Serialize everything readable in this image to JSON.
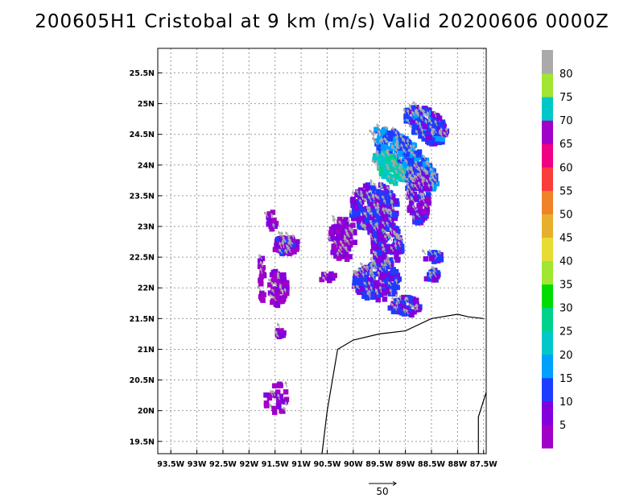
{
  "title": "200605H1 Cristobal at 9 km (m/s) Valid 20200606 0000Z",
  "chart_data": {
    "type": "heatmap",
    "xlim": [
      -93.75,
      -87.45
    ],
    "ylim": [
      19.3,
      25.9
    ],
    "x_ticks": [
      {
        "value": -93.5,
        "label": "93.5W"
      },
      {
        "value": -93.0,
        "label": "93W"
      },
      {
        "value": -92.5,
        "label": "92.5W"
      },
      {
        "value": -92.0,
        "label": "92W"
      },
      {
        "value": -91.5,
        "label": "91.5W"
      },
      {
        "value": -91.0,
        "label": "91W"
      },
      {
        "value": -90.5,
        "label": "90.5W"
      },
      {
        "value": -90.0,
        "label": "90W"
      },
      {
        "value": -89.5,
        "label": "89.5W"
      },
      {
        "value": -89.0,
        "label": "89W"
      },
      {
        "value": -88.5,
        "label": "88.5W"
      },
      {
        "value": -88.0,
        "label": "88W"
      },
      {
        "value": -87.5,
        "label": "87.5W"
      }
    ],
    "y_ticks": [
      {
        "value": 19.5,
        "label": "19.5N"
      },
      {
        "value": 20.0,
        "label": "20N"
      },
      {
        "value": 20.5,
        "label": "20.5N"
      },
      {
        "value": 21.0,
        "label": "21N"
      },
      {
        "value": 21.5,
        "label": "21.5N"
      },
      {
        "value": 22.0,
        "label": "22N"
      },
      {
        "value": 22.5,
        "label": "22.5N"
      },
      {
        "value": 23.0,
        "label": "23N"
      },
      {
        "value": 23.5,
        "label": "23.5N"
      },
      {
        "value": 24.0,
        "label": "24N"
      },
      {
        "value": 24.5,
        "label": "24.5N"
      },
      {
        "value": 25.0,
        "label": "25N"
      },
      {
        "value": 25.5,
        "label": "25.5N"
      }
    ],
    "grid": true,
    "colorbar": {
      "colors": [
        "#a000c8",
        "#8200dc",
        "#1e3cff",
        "#00a0ff",
        "#00c8c8",
        "#00d28c",
        "#00dc00",
        "#a0e632",
        "#e6dc32",
        "#e6af2d",
        "#f08228",
        "#fa3c3c",
        "#f00082",
        "#a000c8",
        "#00c8c8",
        "#a0e632",
        "#aaaaaa"
      ],
      "labels": [
        "5",
        "10",
        "15",
        "20",
        "25",
        "30",
        "35",
        "40",
        "45",
        "50",
        "55",
        "60",
        "65",
        "70",
        "75",
        "80"
      ]
    },
    "reference_vector": {
      "label": "50",
      "value": 50
    },
    "coastline": [
      [
        -90.6,
        19.3
      ],
      [
        -90.5,
        20.0
      ],
      [
        -90.3,
        21.0
      ],
      [
        -90.0,
        21.15
      ],
      [
        -89.5,
        21.25
      ],
      [
        -89.0,
        21.3
      ],
      [
        -88.5,
        21.5
      ],
      [
        -88.0,
        21.57
      ],
      [
        -87.8,
        21.53
      ],
      [
        -87.5,
        21.5
      ]
    ],
    "coastline_east": [
      [
        -87.45,
        20.3
      ],
      [
        -87.6,
        19.9
      ],
      [
        -87.6,
        19.3
      ]
    ],
    "wind_regions": [
      {
        "lon": -89.0,
        "lat": 24.1,
        "rlon": 0.75,
        "rlat": 0.28,
        "rot": -38,
        "speed": 15,
        "n": 320
      },
      {
        "lon": -88.6,
        "lat": 24.65,
        "rlon": 0.45,
        "rlat": 0.25,
        "rot": -30,
        "speed": 12,
        "n": 150
      },
      {
        "lon": -89.3,
        "lat": 23.95,
        "rlon": 0.35,
        "rlat": 0.18,
        "rot": -38,
        "speed": 24,
        "n": 70
      },
      {
        "lon": -89.6,
        "lat": 23.3,
        "rlon": 0.45,
        "rlat": 0.4,
        "rot": 0,
        "speed": 10,
        "n": 220
      },
      {
        "lon": -88.75,
        "lat": 23.5,
        "rlon": 0.22,
        "rlat": 0.45,
        "rot": 0,
        "speed": 8,
        "n": 110
      },
      {
        "lon": -89.35,
        "lat": 22.7,
        "rlon": 0.3,
        "rlat": 0.35,
        "rot": 0,
        "speed": 9,
        "n": 120
      },
      {
        "lon": -89.55,
        "lat": 22.1,
        "rlon": 0.45,
        "rlat": 0.3,
        "rot": 0,
        "speed": 10,
        "n": 160
      },
      {
        "lon": -89.0,
        "lat": 21.7,
        "rlon": 0.3,
        "rlat": 0.15,
        "rot": 0,
        "speed": 10,
        "n": 60
      },
      {
        "lon": -90.2,
        "lat": 22.8,
        "rlon": 0.25,
        "rlat": 0.35,
        "rot": 0,
        "speed": 6,
        "n": 90
      },
      {
        "lon": -91.3,
        "lat": 22.7,
        "rlon": 0.25,
        "rlat": 0.15,
        "rot": 0,
        "speed": 7,
        "n": 80
      },
      {
        "lon": -91.45,
        "lat": 22.0,
        "rlon": 0.18,
        "rlat": 0.3,
        "rot": 0,
        "speed": 5,
        "n": 50
      },
      {
        "lon": -91.75,
        "lat": 22.2,
        "rlon": 0.05,
        "rlat": 0.45,
        "rot": 0,
        "speed": 4,
        "n": 18
      },
      {
        "lon": -88.5,
        "lat": 22.2,
        "rlon": 0.15,
        "rlat": 0.1,
        "rot": 0,
        "speed": 11,
        "n": 22
      },
      {
        "lon": -88.45,
        "lat": 22.5,
        "rlon": 0.18,
        "rlat": 0.08,
        "rot": 0,
        "speed": 11,
        "n": 18
      },
      {
        "lon": -91.4,
        "lat": 21.25,
        "rlon": 0.07,
        "rlat": 0.1,
        "rot": 0,
        "speed": 5,
        "n": 12
      },
      {
        "lon": -91.55,
        "lat": 23.1,
        "rlon": 0.1,
        "rlat": 0.15,
        "rot": 0,
        "speed": 4,
        "n": 12
      },
      {
        "lon": -91.45,
        "lat": 20.2,
        "rlon": 0.25,
        "rlat": 0.28,
        "rot": 0,
        "speed": 4,
        "n": 28
      },
      {
        "lon": -90.5,
        "lat": 22.2,
        "rlon": 0.15,
        "rlat": 0.1,
        "rot": 0,
        "speed": 6,
        "n": 10
      }
    ]
  }
}
